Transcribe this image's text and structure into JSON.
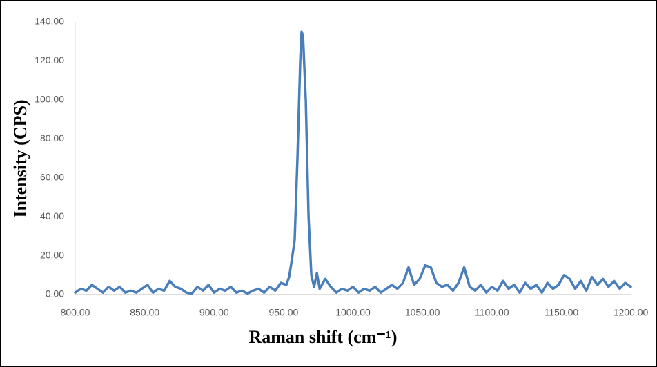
{
  "chart_data": {
    "type": "line",
    "x_label": "Raman shift (cm⁻¹)",
    "y_label": "Intensity (CPS)",
    "color": "#4a7ebb",
    "x": [
      800,
      804,
      808,
      812,
      816,
      820,
      824,
      828,
      832,
      836,
      840,
      844,
      848,
      852,
      856,
      860,
      864,
      868,
      872,
      876,
      880,
      884,
      888,
      892,
      896,
      900,
      904,
      908,
      912,
      916,
      920,
      924,
      928,
      932,
      936,
      940,
      944,
      948,
      952,
      954,
      956,
      958,
      960,
      962,
      963,
      964,
      966,
      968,
      970,
      972,
      974,
      976,
      980,
      984,
      988,
      992,
      996,
      1000,
      1004,
      1008,
      1012,
      1016,
      1020,
      1024,
      1028,
      1032,
      1036,
      1040,
      1044,
      1048,
      1052,
      1056,
      1060,
      1064,
      1068,
      1072,
      1076,
      1080,
      1084,
      1088,
      1092,
      1096,
      1100,
      1104,
      1108,
      1112,
      1116,
      1120,
      1124,
      1128,
      1132,
      1136,
      1140,
      1144,
      1148,
      1152,
      1156,
      1160,
      1164,
      1168,
      1172,
      1176,
      1180,
      1184,
      1188,
      1192,
      1196,
      1200
    ],
    "values": [
      1,
      3,
      2,
      5,
      3,
      1,
      4,
      2,
      4,
      1,
      2,
      1,
      3,
      5,
      1,
      3,
      2,
      7,
      4,
      3,
      1,
      0.5,
      4,
      2,
      5,
      1,
      3,
      2,
      4,
      1,
      2,
      0.5,
      2,
      3,
      1,
      4,
      2,
      6,
      5,
      9,
      18,
      28,
      70,
      120,
      135,
      133,
      100,
      40,
      10,
      4,
      11,
      3,
      8,
      4,
      1,
      3,
      2,
      4,
      1,
      3,
      2,
      4,
      1,
      3,
      5,
      3,
      6,
      14,
      5,
      8,
      15,
      14,
      6,
      4,
      5,
      2,
      6,
      14,
      4,
      2,
      5,
      1,
      4,
      2,
      7,
      3,
      5,
      1,
      6,
      3,
      5,
      1,
      6,
      3,
      5,
      10,
      8,
      3,
      7,
      2,
      9,
      5,
      8,
      4,
      7,
      3,
      6,
      4
    ],
    "xlim": [
      800,
      1200
    ],
    "ylim": [
      0,
      140
    ],
    "xticks": [
      {
        "value": 800,
        "label": "800.00"
      },
      {
        "value": 850,
        "label": "850.00"
      },
      {
        "value": 900,
        "label": "900.00"
      },
      {
        "value": 950,
        "label": "950.00"
      },
      {
        "value": 1000,
        "label": "1000.00"
      },
      {
        "value": 1050,
        "label": "1050.00"
      },
      {
        "value": 1100,
        "label": "1100.00"
      },
      {
        "value": 1150,
        "label": "1150.00"
      },
      {
        "value": 1200,
        "label": "1200.00"
      }
    ],
    "yticks": [
      {
        "value": 0,
        "label": "0.00"
      },
      {
        "value": 20,
        "label": "20.00"
      },
      {
        "value": 40,
        "label": "40.00"
      },
      {
        "value": 60,
        "label": "60.00"
      },
      {
        "value": 80,
        "label": "80.00"
      },
      {
        "value": 100,
        "label": "100.00"
      },
      {
        "value": 120,
        "label": "120.00"
      },
      {
        "value": 140,
        "label": "140.00"
      }
    ]
  }
}
